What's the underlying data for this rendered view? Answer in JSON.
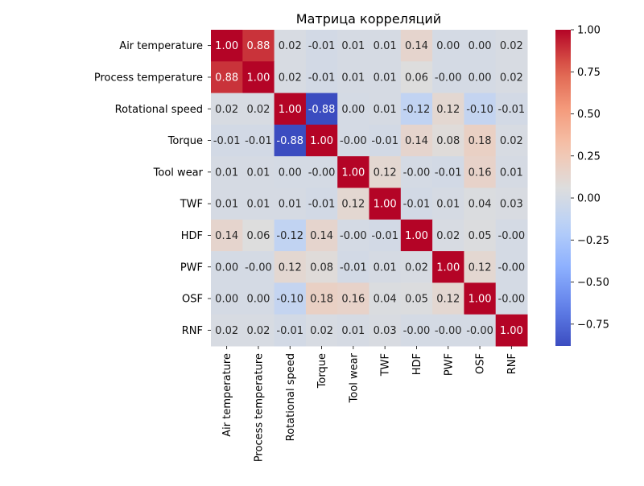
{
  "chart_data": {
    "type": "heatmap",
    "title": "Матрица корреляций",
    "xlabel": "",
    "ylabel": "",
    "labels": [
      "Air temperature",
      "Process temperature",
      "Rotational speed",
      "Torque",
      "Tool wear",
      "TWF",
      "HDF",
      "PWF",
      "OSF",
      "RNF"
    ],
    "x_labels": [
      "Air temperature",
      "Process temperature",
      "Rotational speed",
      "Torque",
      "Tool wear",
      "TWF",
      "HDF",
      "PWF",
      "OSF",
      "RNF"
    ],
    "y_labels": [
      "Air temperature",
      "Process temperature",
      "Rotational speed",
      "Torque",
      "Tool wear",
      "TWF",
      "HDF",
      "PWF",
      "OSF",
      "RNF"
    ],
    "matrix": [
      [
        1.0,
        0.88,
        0.02,
        -0.01,
        0.01,
        0.01,
        0.14,
        0.0,
        0.0,
        0.02
      ],
      [
        0.88,
        1.0,
        0.02,
        -0.01,
        0.01,
        0.01,
        0.06,
        -0.0,
        0.0,
        0.02
      ],
      [
        0.02,
        0.02,
        1.0,
        -0.88,
        0.0,
        0.01,
        -0.12,
        0.12,
        -0.1,
        -0.01
      ],
      [
        -0.01,
        -0.01,
        -0.88,
        1.0,
        -0.0,
        -0.01,
        0.14,
        0.08,
        0.18,
        0.02
      ],
      [
        0.01,
        0.01,
        0.0,
        -0.0,
        1.0,
        0.12,
        -0.0,
        -0.01,
        0.16,
        0.01
      ],
      [
        0.01,
        0.01,
        0.01,
        -0.01,
        0.12,
        1.0,
        -0.01,
        0.01,
        0.04,
        0.03
      ],
      [
        0.14,
        0.06,
        -0.12,
        0.14,
        -0.0,
        -0.01,
        1.0,
        0.02,
        0.05,
        -0.0
      ],
      [
        0.0,
        -0.0,
        0.12,
        0.08,
        -0.01,
        0.01,
        0.02,
        1.0,
        0.12,
        -0.0
      ],
      [
        0.0,
        0.0,
        -0.1,
        0.18,
        0.16,
        0.04,
        0.05,
        0.12,
        1.0,
        -0.0
      ],
      [
        0.02,
        0.02,
        -0.01,
        0.02,
        0.01,
        0.03,
        -0.0,
        -0.0,
        -0.0,
        1.0
      ]
    ],
    "annotations": [
      [
        "1.00",
        "0.88",
        "0.02",
        "-0.01",
        "0.01",
        "0.01",
        "0.14",
        "0.00",
        "0.00",
        "0.02"
      ],
      [
        "0.88",
        "1.00",
        "0.02",
        "-0.01",
        "0.01",
        "0.01",
        "0.06",
        "-0.00",
        "0.00",
        "0.02"
      ],
      [
        "0.02",
        "0.02",
        "1.00",
        "-0.88",
        "0.00",
        "0.01",
        "-0.12",
        "0.12",
        "-0.10",
        "-0.01"
      ],
      [
        "-0.01",
        "-0.01",
        "-0.88",
        "1.00",
        "-0.00",
        "-0.01",
        "0.14",
        "0.08",
        "0.18",
        "0.02"
      ],
      [
        "0.01",
        "0.01",
        "0.00",
        "-0.00",
        "1.00",
        "0.12",
        "-0.00",
        "-0.01",
        "0.16",
        "0.01"
      ],
      [
        "0.01",
        "0.01",
        "0.01",
        "-0.01",
        "0.12",
        "1.00",
        "-0.01",
        "0.01",
        "0.04",
        "0.03"
      ],
      [
        "0.14",
        "0.06",
        "-0.12",
        "0.14",
        "-0.00",
        "-0.01",
        "1.00",
        "0.02",
        "0.05",
        "-0.00"
      ],
      [
        "0.00",
        "-0.00",
        "0.12",
        "0.08",
        "-0.01",
        "0.01",
        "0.02",
        "1.00",
        "0.12",
        "-0.00"
      ],
      [
        "0.00",
        "0.00",
        "-0.10",
        "0.18",
        "0.16",
        "0.04",
        "0.05",
        "0.12",
        "1.00",
        "-0.00"
      ],
      [
        "0.02",
        "0.02",
        "-0.01",
        "0.02",
        "0.01",
        "0.03",
        "-0.00",
        "-0.00",
        "-0.00",
        "1.00"
      ]
    ],
    "colormap": "coolwarm",
    "vmin": -0.88,
    "vmax": 1.0,
    "colorbar": {
      "ticks": [
        1.0,
        0.75,
        0.5,
        0.25,
        0.0,
        -0.25,
        -0.5,
        -0.75
      ],
      "tick_labels": [
        "1.00",
        "0.75",
        "0.50",
        "0.25",
        "0.00",
        "−0.25",
        "−0.50",
        "−0.75"
      ]
    },
    "grid": false,
    "legend": "colorbar-right",
    "colors": {
      "text_dark": "#262626",
      "text_light": "#ffffff",
      "axis": "#000000"
    }
  }
}
